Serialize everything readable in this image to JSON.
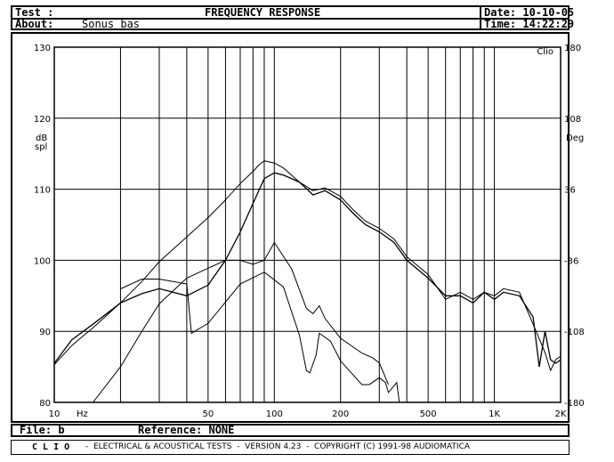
{
  "header": {
    "test_label": "Test :",
    "title": "FREQUENCY RESPONSE",
    "about_label": "About:",
    "about_value": "Sonus bas",
    "date": "Date: 10-10-05",
    "time": "Time: 14:22:29"
  },
  "footer": {
    "file": "File: b",
    "reference": "Reference: NONE",
    "clio_word": "C L I O",
    "banner": "-  ELECTRICAL & ACOUSTICAL TESTS  -  VERSION 4.23  -  COPYRIGHT (C) 1991-98 AUDIOMATICA"
  },
  "chart_data": {
    "type": "line",
    "xscale": "log",
    "xlim": [
      10,
      2000
    ],
    "ylim": [
      80,
      130
    ],
    "y2lim": [
      -180,
      180
    ],
    "grid": true,
    "watermark": "Clio",
    "ylabel": "dB\nspl",
    "y2label": "Deg",
    "xunit_label": "Hz",
    "x_gridlines": [
      20,
      30,
      40,
      50,
      60,
      70,
      80,
      90,
      100,
      200,
      300,
      400,
      500,
      600,
      700,
      800,
      900,
      1000
    ],
    "x_tick_labels": [
      {
        "v": 10,
        "t": "10"
      },
      {
        "v": 50,
        "t": "50"
      },
      {
        "v": 100,
        "t": "100"
      },
      {
        "v": 200,
        "t": "200"
      },
      {
        "v": 500,
        "t": "500"
      },
      {
        "v": 1000,
        "t": "1K"
      },
      {
        "v": 2000,
        "t": "2K"
      }
    ],
    "y_ticks": [
      80,
      90,
      100,
      110,
      120,
      130
    ],
    "y2_ticks": [
      -180,
      -108,
      -36,
      36,
      108,
      180
    ],
    "series": [
      {
        "x": [
          10,
          12,
          15,
          20,
          25,
          30,
          40,
          50,
          60,
          70,
          80,
          85,
          90,
          100,
          110,
          130,
          150,
          170,
          200,
          230,
          260,
          300,
          350,
          400,
          500,
          600,
          700,
          800,
          900,
          1000,
          1100,
          1300,
          1500,
          1700,
          1800,
          1900,
          2000
        ],
        "y": [
          85.3,
          88,
          90.5,
          94,
          97,
          99.8,
          103.3,
          106,
          108.5,
          110.8,
          112.5,
          113.4,
          114,
          113.7,
          113,
          111,
          109.8,
          110.2,
          109,
          107,
          105.5,
          104.5,
          103,
          100.5,
          98,
          94.5,
          95.5,
          94.5,
          95.5,
          95,
          96,
          95.5,
          91,
          87,
          84.5,
          86,
          86.5
        ]
      },
      {
        "x": [
          10,
          12,
          15,
          20,
          25,
          30,
          40,
          50,
          60,
          70,
          80,
          90,
          100,
          110,
          130,
          150,
          170,
          200,
          230,
          260,
          300,
          350,
          400,
          500,
          600,
          700,
          800,
          900,
          1000,
          1100,
          1300,
          1500,
          1600,
          1700,
          1800,
          1900,
          2000
        ],
        "y": [
          85.5,
          88.8,
          91,
          94,
          95.3,
          96,
          95,
          96.5,
          100,
          104,
          108,
          111.5,
          112.3,
          112,
          111,
          109.2,
          109.8,
          108.5,
          106.5,
          105,
          104,
          102.5,
          100,
          97.5,
          95,
          95,
          94,
          95.5,
          94.5,
          95.5,
          95,
          92,
          85,
          90,
          86,
          85.5,
          86
        ]
      },
      {
        "x": [
          15,
          20,
          25,
          30,
          40,
          50,
          60,
          70,
          80,
          90,
          100,
          120,
          140,
          150,
          160,
          170,
          200,
          250,
          280,
          300,
          330
        ],
        "y": [
          -180,
          -144,
          -108,
          -80,
          -54,
          -44,
          -36,
          -36,
          -40,
          -36,
          -18,
          -45,
          -85,
          -90,
          -82,
          -95,
          -115,
          -130,
          -135,
          -140,
          -162
        ]
      },
      {
        "x": [
          20,
          25,
          30,
          40,
          42,
          50,
          70,
          90,
          110,
          130,
          140,
          145,
          155,
          160,
          180,
          200,
          250,
          270,
          300,
          320,
          330,
          360,
          370
        ],
        "y": [
          -65,
          -55,
          -55,
          -60,
          -110,
          -100,
          -60,
          -48,
          -63,
          -112,
          -148,
          -150,
          -132,
          -110,
          -118,
          -138,
          -162,
          -162,
          -155,
          -160,
          -170,
          -160,
          -180
        ]
      }
    ]
  }
}
